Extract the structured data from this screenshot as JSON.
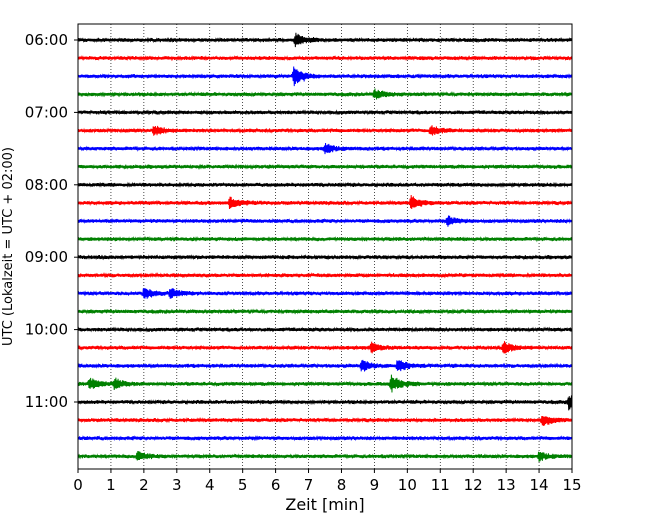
{
  "chart_data": {
    "type": "line",
    "subtype": "helicorder (seismogram drum display)",
    "title": "",
    "xlabel": "Zeit  [min]",
    "ylabel": "UTC (Lokalzeit = UTC + 02:00)",
    "xlim": [
      0,
      15
    ],
    "x_ticks": [
      "0",
      "1",
      "2",
      "3",
      "4",
      "5",
      "6",
      "7",
      "8",
      "9",
      "10",
      "11",
      "12",
      "13",
      "14",
      "15"
    ],
    "grid": {
      "x": true,
      "y": false,
      "style": "dotted"
    },
    "row_minutes": 15,
    "row_start_times": [
      "06:00",
      "06:15",
      "06:30",
      "06:45",
      "07:00",
      "07:15",
      "07:30",
      "07:45",
      "08:00",
      "08:15",
      "08:30",
      "08:45",
      "09:00",
      "09:15",
      "09:30",
      "09:45",
      "10:00",
      "10:15",
      "10:30",
      "10:45",
      "11:00",
      "11:15",
      "11:30",
      "11:45"
    ],
    "y_tick_labels": [
      "06:00",
      "07:00",
      "08:00",
      "09:00",
      "10:00",
      "11:00"
    ],
    "trace_colors": [
      "#000000",
      "#ff0000",
      "#0000ff",
      "#008000"
    ],
    "events": [
      {
        "row": "06:00",
        "minute": 6.6,
        "amplitude": 0.6
      },
      {
        "row": "06:30",
        "minute": 6.55,
        "amplitude": 1.0
      },
      {
        "row": "06:45",
        "minute": 9.0,
        "amplitude": 0.45
      },
      {
        "row": "07:15",
        "minute": 2.3,
        "amplitude": 0.4
      },
      {
        "row": "07:15",
        "minute": 10.7,
        "amplitude": 0.45
      },
      {
        "row": "07:30",
        "minute": 7.5,
        "amplitude": 0.45
      },
      {
        "row": "08:15",
        "minute": 4.6,
        "amplitude": 0.5
      },
      {
        "row": "08:15",
        "minute": 10.1,
        "amplitude": 0.6
      },
      {
        "row": "08:30",
        "minute": 11.2,
        "amplitude": 0.45
      },
      {
        "row": "09:30",
        "minute": 2.0,
        "amplitude": 0.55
      },
      {
        "row": "09:30",
        "minute": 2.8,
        "amplitude": 0.45
      },
      {
        "row": "10:15",
        "minute": 8.9,
        "amplitude": 0.45
      },
      {
        "row": "10:15",
        "minute": 12.9,
        "amplitude": 0.55
      },
      {
        "row": "10:30",
        "minute": 8.6,
        "amplitude": 0.55
      },
      {
        "row": "10:30",
        "minute": 9.7,
        "amplitude": 0.6
      },
      {
        "row": "10:45",
        "minute": 0.35,
        "amplitude": 0.55
      },
      {
        "row": "10:45",
        "minute": 1.1,
        "amplitude": 0.5
      },
      {
        "row": "10:45",
        "minute": 9.5,
        "amplitude": 0.8
      },
      {
        "row": "11:00",
        "minute": 14.9,
        "amplitude": 0.6
      },
      {
        "row": "11:15",
        "minute": 14.1,
        "amplitude": 0.5
      },
      {
        "row": "11:45",
        "minute": 1.8,
        "amplitude": 0.45
      },
      {
        "row": "11:45",
        "minute": 14.0,
        "amplitude": 0.4
      }
    ]
  }
}
